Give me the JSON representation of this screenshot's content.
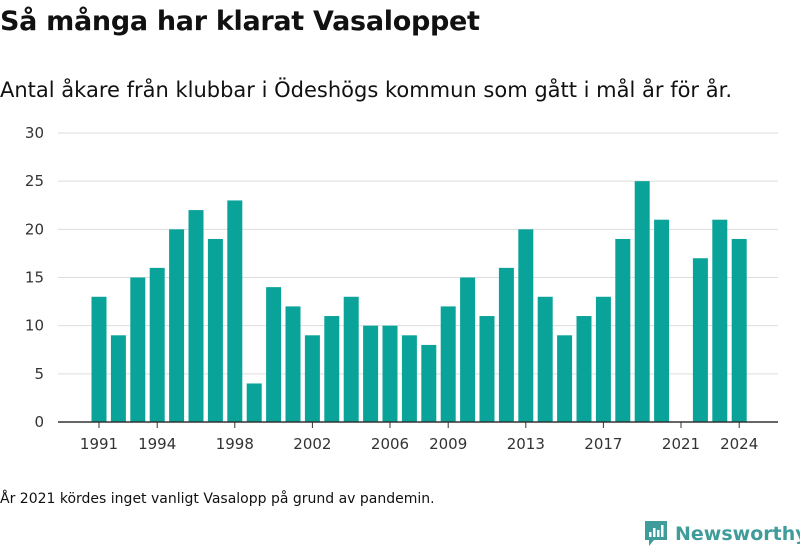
{
  "header": {
    "title": "Så många har klarat Vasaloppet",
    "subtitle": "Antal åkare från klubbar i Ödeshögs kommun som gått i mål år för år."
  },
  "footer": {
    "note": "År 2021 kördes inget vanligt Vasalopp på grund av pandemin.",
    "brand": "Newsworthy"
  },
  "colors": {
    "bar": "#0aa39a",
    "grid": "#dddddd",
    "axis": "#333333",
    "brand": "#3f9c9a"
  },
  "chart_data": {
    "type": "bar",
    "title": "Så många har klarat Vasaloppet",
    "subtitle": "Antal åkare från klubbar i Ödeshögs kommun som gått i mål år för år.",
    "xlabel": "",
    "ylabel": "",
    "ylim": [
      0,
      30
    ],
    "yticks": [
      0,
      5,
      10,
      15,
      20,
      25,
      30
    ],
    "xticks": [
      1991,
      1994,
      1998,
      2002,
      2006,
      2009,
      2013,
      2017,
      2021,
      2024
    ],
    "grid": true,
    "legend": "none",
    "categories": [
      1991,
      1992,
      1993,
      1994,
      1995,
      1996,
      1997,
      1998,
      1999,
      2000,
      2001,
      2002,
      2003,
      2004,
      2005,
      2006,
      2007,
      2008,
      2009,
      2010,
      2011,
      2012,
      2013,
      2014,
      2015,
      2016,
      2017,
      2018,
      2019,
      2020,
      2021,
      2022,
      2023,
      2024
    ],
    "values": [
      13,
      9,
      15,
      16,
      20,
      22,
      19,
      23,
      4,
      14,
      12,
      9,
      11,
      13,
      10,
      10,
      9,
      8,
      12,
      15,
      11,
      16,
      20,
      13,
      9,
      11,
      13,
      19,
      25,
      21,
      null,
      17,
      21,
      19
    ]
  }
}
